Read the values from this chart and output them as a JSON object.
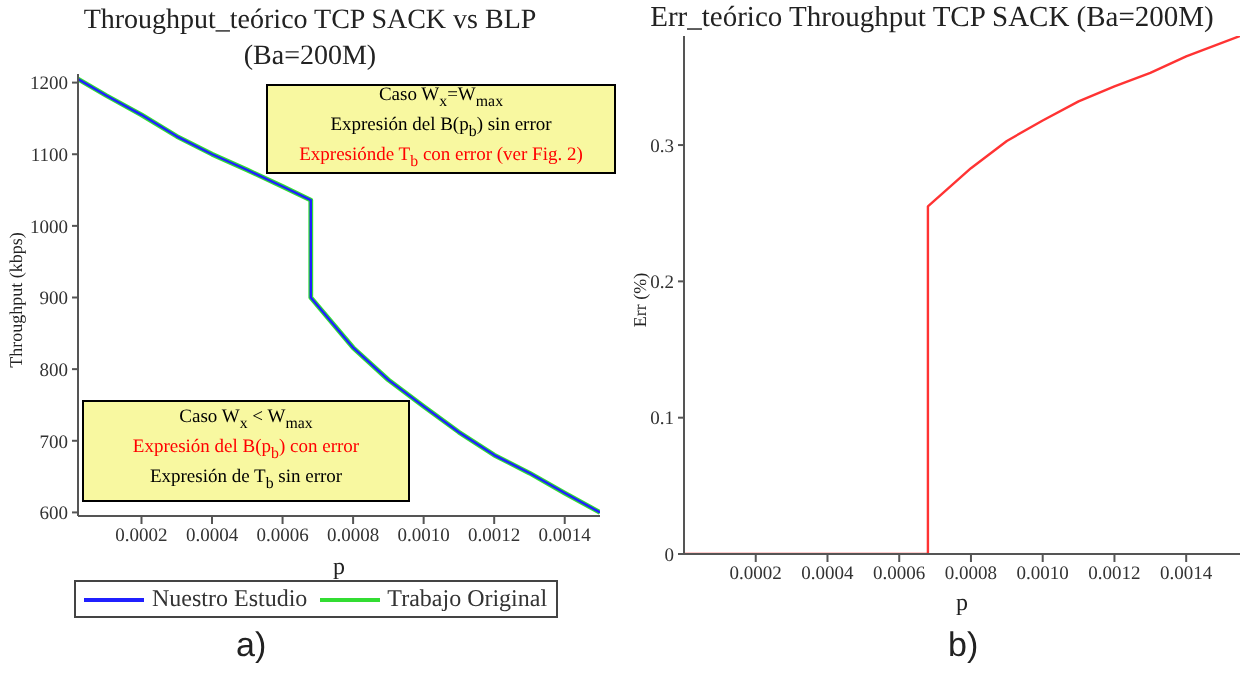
{
  "chart_data": [
    {
      "type": "line",
      "title": "Throughput_teórico TCP SACK vs BLP (Ba=200M)",
      "xlabel": "p",
      "ylabel": "Throughput (kbps)",
      "xlim": [
        2e-05,
        0.0015
      ],
      "ylim": [
        595,
        1212
      ],
      "xticks": [
        0.0002,
        0.0004,
        0.0006,
        0.0008,
        {
          "value": 0.001,
          "label": "0.0010"
        },
        {
          "value": 0.0012,
          "label": "0.0012"
        },
        {
          "value": 0.0014,
          "label": "0.0014"
        }
      ],
      "yticks": [
        600,
        700,
        800,
        900,
        1000,
        1100,
        1200
      ],
      "grid": false,
      "legend": "bottom",
      "marker": "none",
      "line_style": "solid",
      "series": [
        {
          "name": "Nuestro Estudio",
          "color": "#2020ff",
          "x": [
            2e-05,
            0.0001,
            0.0002,
            0.0003,
            0.0004,
            0.0005,
            0.0006,
            0.00068,
            0.00068,
            0.0008,
            0.0009,
            0.001,
            0.0011,
            0.0012,
            0.0013,
            0.0014,
            0.0015
          ],
          "values": [
            1205,
            1182,
            1155,
            1125,
            1100,
            1078,
            1055,
            1036,
            900,
            830,
            785,
            748,
            712,
            680,
            655,
            627,
            600
          ]
        },
        {
          "name": "Trabajo Original",
          "color": "#33dd33",
          "x": [
            2e-05,
            0.0001,
            0.0002,
            0.0003,
            0.0004,
            0.0005,
            0.0006,
            0.00068,
            0.00068,
            0.0008,
            0.0009,
            0.001,
            0.0011,
            0.0012,
            0.0013,
            0.0014,
            0.0015
          ],
          "values": [
            1205,
            1182,
            1155,
            1125,
            1100,
            1078,
            1055,
            1036,
            900,
            830,
            785,
            748,
            712,
            680,
            655,
            627,
            600
          ]
        }
      ],
      "annotations": [
        "Caso W$_{x}$=W$_{max}$",
        "Expresión del B(p$_{b}$) sin error",
        "Expresiónde T$_{b}$ con error (ver Fig. 2)",
        "Caso W$_{x}$ < W$_{max}$",
        "Expresión del B(p$_{b}$) con error",
        "Expresión de T$_{b}$ sin error",
        "a)"
      ]
    },
    {
      "type": "line",
      "title": "Err_teórico Throughput TCP SACK (Ba=200M)",
      "xlabel": "p",
      "ylabel": "Err (%)",
      "xlim": [
        0,
        0.00155
      ],
      "ylim": [
        0,
        0.38
      ],
      "xticks": [
        0.0002,
        0.0004,
        0.0006,
        0.0008,
        {
          "value": 0.001,
          "label": "0.0010"
        },
        {
          "value": 0.0012,
          "label": "0.0012"
        },
        {
          "value": 0.0014,
          "label": "0.0014"
        }
      ],
      "yticks": [
        0,
        0.1,
        0.2,
        0.3
      ],
      "grid": false,
      "marker": "none",
      "line_style": "solid",
      "series": [
        {
          "color": "#ff3333",
          "x": [
            0,
            0.00068,
            0.00068,
            0.0008,
            0.0009,
            0.001,
            0.0011,
            0.0012,
            0.0013,
            0.0014,
            0.00155
          ],
          "values": [
            0,
            0,
            0.255,
            0.283,
            0.303,
            0.318,
            0.332,
            0.343,
            0.353,
            0.365,
            0.38
          ]
        }
      ],
      "annotations": [
        "b)"
      ]
    }
  ]
}
